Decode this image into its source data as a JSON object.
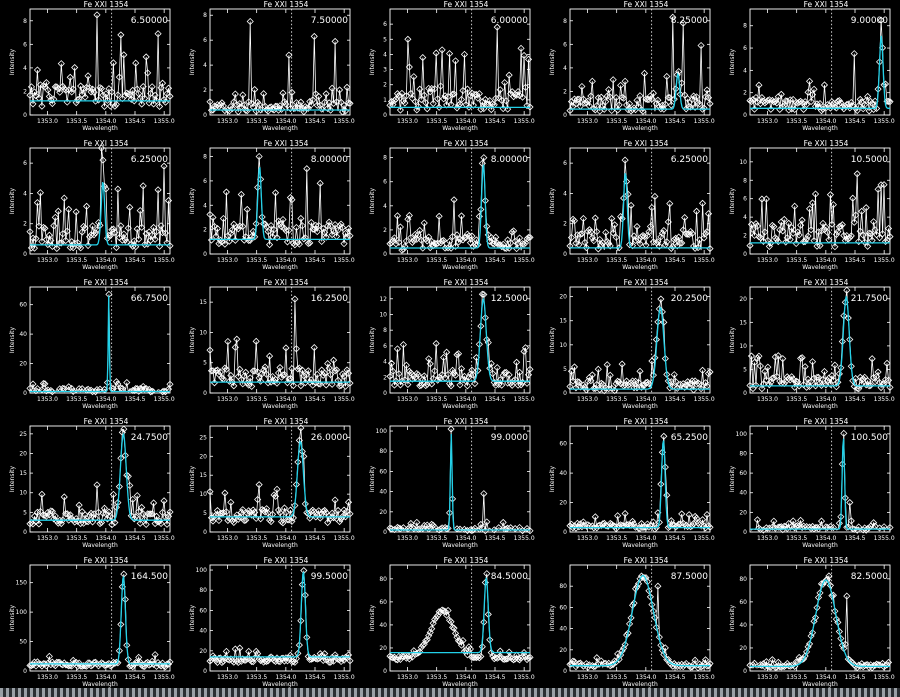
{
  "figure": {
    "panel_title": "Fe XXI 1354",
    "xlabel": "Wavelength",
    "ylabel": "Intensity",
    "x_tick_labels": [
      "1353.0",
      "1353.5",
      "1354.0",
      "1354.5",
      "1355.0"
    ],
    "colors": {
      "background": "#000000",
      "data": "#ffffff",
      "fit": "#22d0e8"
    }
  },
  "chart_data": [
    {
      "type": "line",
      "title": "Fe XXI 1354",
      "peak_label": "6.50000",
      "xlim": [
        1352.7,
        1355.1
      ],
      "ylim": [
        0,
        9
      ],
      "yticks": [
        0,
        2,
        4,
        6,
        8
      ],
      "ref_x": 1354.1,
      "center": 1354.65,
      "width": 0.03,
      "amp": 0,
      "base": 1.2,
      "peaks": [
        [
          1353.4,
          3.2
        ],
        [
          1353.85,
          8.5
        ],
        [
          1354.25,
          6.8
        ],
        [
          1354.9,
          6.9
        ]
      ],
      "noise": 2.5,
      "seed": 1
    },
    {
      "type": "line",
      "title": "Fe XXI 1354",
      "peak_label": "7.50000",
      "xlim": [
        1352.7,
        1355.1
      ],
      "ylim": [
        0,
        8.5
      ],
      "yticks": [
        0,
        2,
        4,
        6,
        8
      ],
      "ref_x": 1354.1,
      "center": 1354.3,
      "width": 0.03,
      "amp": 0,
      "base": 0.4,
      "peaks": [
        [
          1353.4,
          7.5
        ],
        [
          1354.05,
          4.8
        ],
        [
          1354.5,
          6.3
        ],
        [
          1354.85,
          5.9
        ]
      ],
      "noise": 1.2,
      "seed": 2
    },
    {
      "type": "line",
      "title": "Fe XXI 1354",
      "peak_label": "6.00000",
      "xlim": [
        1352.7,
        1355.1
      ],
      "ylim": [
        0,
        7
      ],
      "yticks": [
        0,
        1,
        2,
        3,
        4,
        5,
        6
      ],
      "ref_x": 1354.1,
      "center": 1354.5,
      "width": 0.03,
      "amp": 0,
      "base": 0.5,
      "peaks": [
        [
          1353.0,
          5.0
        ],
        [
          1353.6,
          4.3
        ],
        [
          1354.55,
          5.8
        ],
        [
          1354.95,
          4.4
        ]
      ],
      "noise": 2.2,
      "seed": 3
    },
    {
      "type": "line",
      "title": "Fe XXI 1354",
      "peak_label": "8.25000",
      "xlim": [
        1352.7,
        1355.1
      ],
      "ylim": [
        0,
        9
      ],
      "yticks": [
        0,
        2,
        4,
        6,
        8
      ],
      "ref_x": 1354.1,
      "center": 1354.55,
      "width": 0.03,
      "amp": 3,
      "base": 0.5,
      "peaks": [
        [
          1354.45,
          8.3
        ],
        [
          1354.65,
          7.8
        ],
        [
          1354.95,
          5.9
        ]
      ],
      "noise": 2.0,
      "seed": 4
    },
    {
      "type": "line",
      "title": "Fe XXI 1354",
      "peak_label": "9.00000",
      "xlim": [
        1352.7,
        1355.1
      ],
      "ylim": [
        0,
        9.5
      ],
      "yticks": [
        0,
        2,
        4,
        6,
        8
      ],
      "ref_x": 1354.1,
      "center": 1354.95,
      "width": 0.03,
      "amp": 6.5,
      "base": 0.6,
      "peaks": [
        [
          1354.95,
          8.5
        ],
        [
          1354.5,
          5.5
        ]
      ],
      "noise": 1.5,
      "seed": 5
    },
    {
      "type": "line",
      "title": "Fe XXI 1354",
      "peak_label": "6.25000",
      "xlim": [
        1352.7,
        1355.1
      ],
      "ylim": [
        0,
        7
      ],
      "yticks": [
        0,
        2,
        4,
        6
      ],
      "ref_x": 1354.1,
      "center": 1353.95,
      "width": 0.03,
      "amp": 4.2,
      "base": 0.6,
      "peaks": [
        [
          1353.95,
          6.2
        ],
        [
          1355.0,
          5.8
        ],
        [
          1354.65,
          4.5
        ]
      ],
      "noise": 2.2,
      "seed": 6
    },
    {
      "type": "line",
      "title": "Fe XXI 1354",
      "peak_label": "8.00000",
      "xlim": [
        1352.7,
        1355.1
      ],
      "ylim": [
        0,
        8.7
      ],
      "yticks": [
        0,
        2,
        4,
        6,
        8
      ],
      "ref_x": 1354.1,
      "center": 1353.55,
      "width": 0.03,
      "amp": 6,
      "base": 1.2,
      "peaks": [
        [
          1353.55,
          8.0
        ],
        [
          1354.35,
          7.0
        ],
        [
          1354.6,
          5.8
        ]
      ],
      "noise": 2.5,
      "seed": 7
    },
    {
      "type": "line",
      "title": "Fe XXI 1354",
      "peak_label": "8.00000",
      "xlim": [
        1352.7,
        1355.1
      ],
      "ylim": [
        0,
        8.8
      ],
      "yticks": [
        0,
        2,
        4,
        6,
        8
      ],
      "ref_x": 1354.1,
      "center": 1354.3,
      "width": 0.03,
      "amp": 7,
      "base": 0.5,
      "peaks": [
        [
          1354.3,
          8.0
        ],
        [
          1353.8,
          4.5
        ]
      ],
      "noise": 2.0,
      "seed": 8
    },
    {
      "type": "line",
      "title": "Fe XXI 1354",
      "peak_label": "6.25000",
      "xlim": [
        1352.7,
        1355.1
      ],
      "ylim": [
        0,
        7
      ],
      "yticks": [
        0,
        2,
        4,
        6
      ],
      "ref_x": 1354.1,
      "center": 1353.65,
      "width": 0.03,
      "amp": 5,
      "base": 0.4,
      "peaks": [
        [
          1353.65,
          6.2
        ],
        [
          1354.15,
          3.8
        ]
      ],
      "noise": 1.8,
      "seed": 9
    },
    {
      "type": "line",
      "title": "Fe XXI 1354",
      "peak_label": "10.5000",
      "xlim": [
        1352.7,
        1355.1
      ],
      "ylim": [
        0,
        11.5
      ],
      "yticks": [
        0,
        2,
        4,
        6,
        8,
        10
      ],
      "ref_x": 1354.1,
      "center": 1354.4,
      "width": 0.03,
      "amp": 0,
      "base": 1.2,
      "peaks": [
        [
          1354.55,
          8.7
        ],
        [
          1354.95,
          7.5
        ]
      ],
      "noise": 4.0,
      "seed": 10
    },
    {
      "type": "line",
      "title": "Fe XXI 1354",
      "peak_label": "66.7500",
      "xlim": [
        1352.7,
        1355.1
      ],
      "ylim": [
        0,
        72
      ],
      "yticks": [
        0,
        20,
        40,
        60
      ],
      "ref_x": 1354.1,
      "center": 1354.05,
      "width": 0.01,
      "amp": 65,
      "base": 1.0,
      "peaks": [
        [
          1354.05,
          67
        ]
      ],
      "noise": 4.0,
      "seed": 11
    },
    {
      "type": "line",
      "title": "Fe XXI 1354",
      "peak_label": "16.2500",
      "xlim": [
        1352.7,
        1355.1
      ],
      "ylim": [
        0,
        17.5
      ],
      "yticks": [
        0,
        5,
        10,
        15
      ],
      "ref_x": 1354.1,
      "center": 1354.15,
      "width": 0.03,
      "amp": 0,
      "base": 1.8,
      "peaks": [
        [
          1354.15,
          15.5
        ],
        [
          1353.0,
          8.5
        ],
        [
          1354.5,
          7.5
        ]
      ],
      "noise": 4.5,
      "seed": 12
    },
    {
      "type": "line",
      "title": "Fe XXI 1354",
      "peak_label": "12.5000",
      "xlim": [
        1352.7,
        1355.1
      ],
      "ylim": [
        0,
        13.5
      ],
      "yticks": [
        0,
        2,
        4,
        6,
        8,
        10,
        12
      ],
      "ref_x": 1354.1,
      "center": 1354.3,
      "width": 0.05,
      "amp": 10.5,
      "base": 1.5,
      "peaks": [
        [
          1354.3,
          12.3
        ],
        [
          1353.5,
          6.3
        ]
      ],
      "noise": 3.0,
      "seed": 13
    },
    {
      "type": "line",
      "title": "Fe XXI 1354",
      "peak_label": "20.2500",
      "xlim": [
        1352.7,
        1355.1
      ],
      "ylim": [
        0,
        22
      ],
      "yticks": [
        0,
        5,
        10,
        15,
        20
      ],
      "ref_x": 1354.1,
      "center": 1354.25,
      "width": 0.06,
      "amp": 17,
      "base": 0.8,
      "peaks": [
        [
          1354.25,
          19.5
        ],
        [
          1353.6,
          6.0
        ]
      ],
      "noise": 3.0,
      "seed": 14
    },
    {
      "type": "line",
      "title": "Fe XXI 1354",
      "peak_label": "21.7500",
      "xlim": [
        1352.7,
        1355.1
      ],
      "ylim": [
        0,
        22.5
      ],
      "yticks": [
        0,
        5,
        10,
        15,
        20
      ],
      "ref_x": 1354.1,
      "center": 1354.35,
      "width": 0.05,
      "amp": 19,
      "base": 1.5,
      "peaks": [
        [
          1354.35,
          21.0
        ],
        [
          1353.6,
          7.5
        ]
      ],
      "noise": 4.0,
      "seed": 15
    },
    {
      "type": "line",
      "title": "Fe XXI 1354",
      "peak_label": "24.7500",
      "xlim": [
        1352.7,
        1355.1
      ],
      "ylim": [
        0,
        27
      ],
      "yticks": [
        0,
        5,
        10,
        15,
        20,
        25
      ],
      "ref_x": 1354.1,
      "center": 1354.3,
      "width": 0.05,
      "amp": 22,
      "base": 3.0,
      "peaks": [
        [
          1354.3,
          24.8
        ],
        [
          1353.85,
          12.0
        ]
      ],
      "noise": 5.0,
      "seed": 16
    },
    {
      "type": "line",
      "title": "Fe XXI 1354",
      "peak_label": "26.0000",
      "xlim": [
        1352.7,
        1355.1
      ],
      "ylim": [
        0,
        28
      ],
      "yticks": [
        0,
        5,
        10,
        15,
        20,
        25
      ],
      "ref_x": 1354.1,
      "center": 1354.25,
      "width": 0.05,
      "amp": 20,
      "base": 4.0,
      "peaks": [
        [
          1354.25,
          25.5
        ],
        [
          1353.55,
          12.5
        ]
      ],
      "noise": 5.0,
      "seed": 17
    },
    {
      "type": "line",
      "title": "Fe XXI 1354",
      "peak_label": "99.0000",
      "xlim": [
        1352.7,
        1355.1
      ],
      "ylim": [
        0,
        105
      ],
      "yticks": [
        0,
        20,
        40,
        60,
        80,
        100
      ],
      "ref_x": 1354.1,
      "center": 1353.75,
      "width": 0.015,
      "amp": 95,
      "base": 2.0,
      "peaks": [
        [
          1353.75,
          99
        ],
        [
          1354.3,
          38
        ]
      ],
      "noise": 5.0,
      "seed": 18
    },
    {
      "type": "line",
      "title": "Fe XXI 1354",
      "peak_label": "65.2500",
      "xlim": [
        1352.7,
        1355.1
      ],
      "ylim": [
        0,
        72
      ],
      "yticks": [
        0,
        20,
        40,
        60
      ],
      "ref_x": 1354.1,
      "center": 1354.3,
      "width": 0.03,
      "amp": 60,
      "base": 3.0,
      "peaks": [
        [
          1354.3,
          65
        ],
        [
          1354.35,
          25
        ]
      ],
      "noise": 6.0,
      "seed": 19
    },
    {
      "type": "line",
      "title": "Fe XXI 1354",
      "peak_label": "100.500",
      "xlim": [
        1352.7,
        1355.1
      ],
      "ylim": [
        0,
        108
      ],
      "yticks": [
        0,
        20,
        40,
        60,
        80,
        100
      ],
      "ref_x": 1354.1,
      "center": 1354.3,
      "width": 0.02,
      "amp": 95,
      "base": 3.0,
      "peaks": [
        [
          1354.3,
          100.5
        ],
        [
          1354.4,
          30
        ]
      ],
      "noise": 6.0,
      "seed": 20
    },
    {
      "type": "line",
      "title": "Fe XXI 1354",
      "peak_label": "164.500",
      "xlim": [
        1352.7,
        1355.1
      ],
      "ylim": [
        0,
        180
      ],
      "yticks": [
        0,
        50,
        100,
        150
      ],
      "ref_x": 1354.1,
      "center": 1354.3,
      "width": 0.035,
      "amp": 150,
      "base": 12,
      "peaks": [
        [
          1354.3,
          164.5
        ]
      ],
      "noise": 12,
      "seed": 21
    },
    {
      "type": "line",
      "title": "Fe XXI 1354",
      "peak_label": "99.5000",
      "xlim": [
        1352.7,
        1355.1
      ],
      "ylim": [
        0,
        105
      ],
      "yticks": [
        0,
        20,
        40,
        60,
        80,
        100
      ],
      "ref_x": 1354.1,
      "center": 1354.3,
      "width": 0.035,
      "amp": 85,
      "base": 14,
      "peaks": [
        [
          1354.3,
          99.5
        ]
      ],
      "noise": 8,
      "seed": 22
    },
    {
      "type": "line",
      "title": "Fe XXI 1354",
      "peak_label": "84.5000",
      "xlim": [
        1352.7,
        1355.1
      ],
      "ylim": [
        0,
        92
      ],
      "yticks": [
        0,
        20,
        40,
        60,
        80
      ],
      "ref_x": 1354.1,
      "center": 1354.35,
      "width": 0.035,
      "amp": 65,
      "base": 16,
      "peaks": [
        [
          1354.35,
          84.5
        ]
      ],
      "hump": [
        1353.6,
        0.2,
        40
      ],
      "noise": 5,
      "seed": 23
    },
    {
      "type": "line",
      "title": "Fe XXI 1354",
      "peak_label": "87.5000",
      "xlim": [
        1352.7,
        1355.1
      ],
      "ylim": [
        0,
        100
      ],
      "yticks": [
        0,
        20,
        40,
        60,
        80
      ],
      "ref_x": 1354.1,
      "center": 1353.95,
      "width": 0.18,
      "amp": 85,
      "base": 5,
      "peaks": [
        [
          1353.95,
          87.5
        ],
        [
          1354.2,
          80
        ]
      ],
      "noise": 6,
      "seed": 24
    },
    {
      "type": "line",
      "title": "Fe XXI 1354",
      "peak_label": "82.5000",
      "xlim": [
        1352.7,
        1355.1
      ],
      "ylim": [
        0,
        92
      ],
      "yticks": [
        0,
        20,
        40,
        60,
        80
      ],
      "ref_x": 1354.1,
      "center": 1354.0,
      "width": 0.17,
      "amp": 75,
      "base": 4,
      "peaks": [
        [
          1354.05,
          82.5
        ],
        [
          1354.35,
          65
        ]
      ],
      "noise": 6,
      "seed": 25
    }
  ]
}
